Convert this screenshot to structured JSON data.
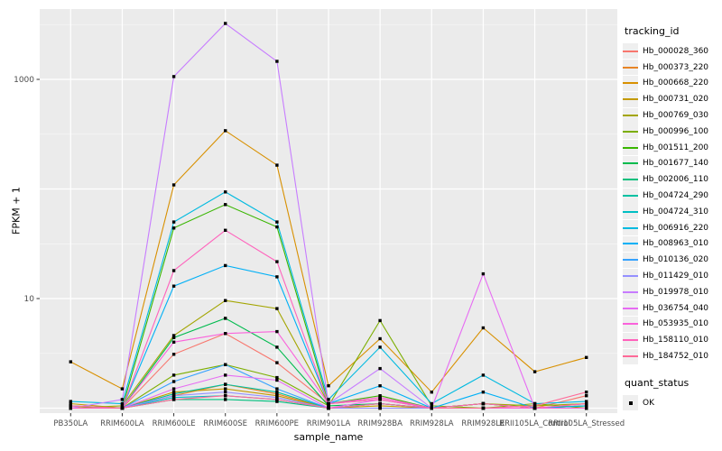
{
  "ui": {
    "legend_title": "tracking_id",
    "quant_status_title": "quant_status",
    "quant_ok_label": "OK",
    "colors": {
      "panel_bg": "#EBEBEB",
      "grid": "#FFFFFF",
      "axis_text": "#4D4D4D",
      "title_text": "#000000",
      "point": "#000000",
      "legend_key_bg": "#EFEFEF"
    }
  },
  "chart_data": {
    "type": "line",
    "title": "",
    "xlabel": "sample_name",
    "ylabel": "FPKM + 1",
    "y_scale": "log10",
    "grid": true,
    "legend_position": "right",
    "point_marker": "black-square",
    "point_legend": {
      "title": "quant_status",
      "label": "OK"
    },
    "y_ticks": [
      {
        "label": "1000",
        "value": 1000
      },
      {
        "label": "10",
        "value": 10
      }
    ],
    "y_gridlines_major": [
      1,
      10,
      100,
      1000
    ],
    "y_gridlines_minor": [
      3.16,
      31.6,
      316,
      3162
    ],
    "ylim": [
      0.9,
      4000
    ],
    "categories": [
      "PB350LA",
      "RRIM600LA",
      "RRIM600LE",
      "RRIM600SE",
      "RRIM600PE",
      "RRIM901LA",
      "RRIM928BA",
      "RRIM928LA",
      "RRIM928LE",
      "RRII105LA_Control",
      "RRII105LA_Stressed"
    ],
    "series": [
      {
        "name": "Hb_000028_360",
        "color": "#F8766D",
        "values": [
          1.05,
          1.0,
          3.1,
          4.8,
          2.6,
          1.1,
          1.25,
          1.0,
          1.1,
          1.0,
          1.3
        ]
      },
      {
        "name": "Hb_000373_220",
        "color": "#E88526",
        "values": [
          1.0,
          1.0,
          1.3,
          1.65,
          1.35,
          1.0,
          1.1,
          1.0,
          1.0,
          1.0,
          1.1
        ]
      },
      {
        "name": "Hb_000668_220",
        "color": "#D89000",
        "values": [
          2.65,
          1.5,
          109,
          340,
          165,
          1.6,
          4.3,
          1.4,
          5.4,
          2.15,
          2.9
        ]
      },
      {
        "name": "Hb_000731_020",
        "color": "#C49A00",
        "values": [
          1.1,
          1.0,
          1.4,
          1.5,
          1.3,
          1.0,
          1.05,
          1.0,
          1.1,
          1.0,
          1.05
        ]
      },
      {
        "name": "Hb_000769_030",
        "color": "#A3A500",
        "values": [
          1.0,
          1.05,
          4.6,
          9.6,
          8.1,
          1.1,
          1.2,
          1.0,
          1.1,
          1.05,
          1.1
        ]
      },
      {
        "name": "Hb_000996_100",
        "color": "#7CAE00",
        "values": [
          1.0,
          1.0,
          2.0,
          2.5,
          1.9,
          1.05,
          6.3,
          1.05,
          1.0,
          1.1,
          1.0
        ]
      },
      {
        "name": "Hb_001511_200",
        "color": "#39B600",
        "values": [
          1.0,
          1.0,
          44,
          72,
          45,
          1.1,
          1.3,
          1.0,
          1.1,
          1.0,
          1.05
        ]
      },
      {
        "name": "Hb_001677_140",
        "color": "#00BB4E",
        "values": [
          1.0,
          1.0,
          4.4,
          6.6,
          3.6,
          1.05,
          1.1,
          1.0,
          1.0,
          1.0,
          1.0
        ]
      },
      {
        "name": "Hb_002006_110",
        "color": "#00BF7D",
        "values": [
          1.0,
          1.0,
          1.2,
          1.2,
          1.15,
          1.0,
          1.0,
          1.0,
          1.0,
          1.0,
          1.0
        ]
      },
      {
        "name": "Hb_004724_290",
        "color": "#00C1A3",
        "values": [
          1.0,
          1.0,
          1.35,
          1.65,
          1.4,
          1.0,
          1.1,
          1.0,
          1.0,
          1.0,
          1.0
        ]
      },
      {
        "name": "Hb_004724_310",
        "color": "#00BFC4",
        "values": [
          1.05,
          1.0,
          1.25,
          1.3,
          1.2,
          1.0,
          1.0,
          1.0,
          1.0,
          1.0,
          1.0
        ]
      },
      {
        "name": "Hb_006916_220",
        "color": "#00BAE0",
        "values": [
          1.15,
          1.1,
          50,
          94,
          50,
          1.2,
          3.6,
          1.1,
          2.0,
          1.1,
          1.15
        ]
      },
      {
        "name": "Hb_008963_010",
        "color": "#00B0F6",
        "values": [
          1.0,
          1.0,
          13,
          20,
          15.8,
          1.1,
          1.6,
          1.0,
          1.4,
          1.0,
          1.05
        ]
      },
      {
        "name": "Hb_010136_020",
        "color": "#35A2FF",
        "values": [
          1.0,
          1.0,
          1.75,
          2.5,
          1.5,
          1.0,
          1.1,
          1.0,
          1.0,
          1.0,
          1.0
        ]
      },
      {
        "name": "Hb_011429_010",
        "color": "#9590FF",
        "values": [
          1.0,
          1.0,
          1.3,
          1.4,
          1.25,
          1.0,
          1.0,
          1.0,
          1.0,
          1.0,
          1.0
        ]
      },
      {
        "name": "Hb_019978_010",
        "color": "#C77CFF",
        "values": [
          1.0,
          1.2,
          1060,
          3240,
          1460,
          1.1,
          2.3,
          1.0,
          1.0,
          1.0,
          1.0
        ]
      },
      {
        "name": "Hb_036754_040",
        "color": "#E76BF3",
        "values": [
          1.0,
          1.0,
          1.5,
          2.0,
          1.8,
          1.0,
          1.2,
          1.0,
          16.8,
          1.0,
          1.0
        ]
      },
      {
        "name": "Hb_053935_010",
        "color": "#FA62DB",
        "values": [
          1.0,
          1.0,
          4.0,
          4.8,
          5.0,
          1.1,
          1.25,
          1.0,
          1.0,
          1.0,
          1.0
        ]
      },
      {
        "name": "Hb_158110_010",
        "color": "#FF62BC",
        "values": [
          1.0,
          1.0,
          18,
          42,
          21.7,
          1.1,
          1.2,
          1.0,
          1.1,
          1.0,
          1.1
        ]
      },
      {
        "name": "Hb_184752_010",
        "color": "#FF6A98",
        "values": [
          1.05,
          1.0,
          1.2,
          1.3,
          1.2,
          1.0,
          1.1,
          1.0,
          1.0,
          1.05,
          1.4
        ]
      }
    ]
  }
}
